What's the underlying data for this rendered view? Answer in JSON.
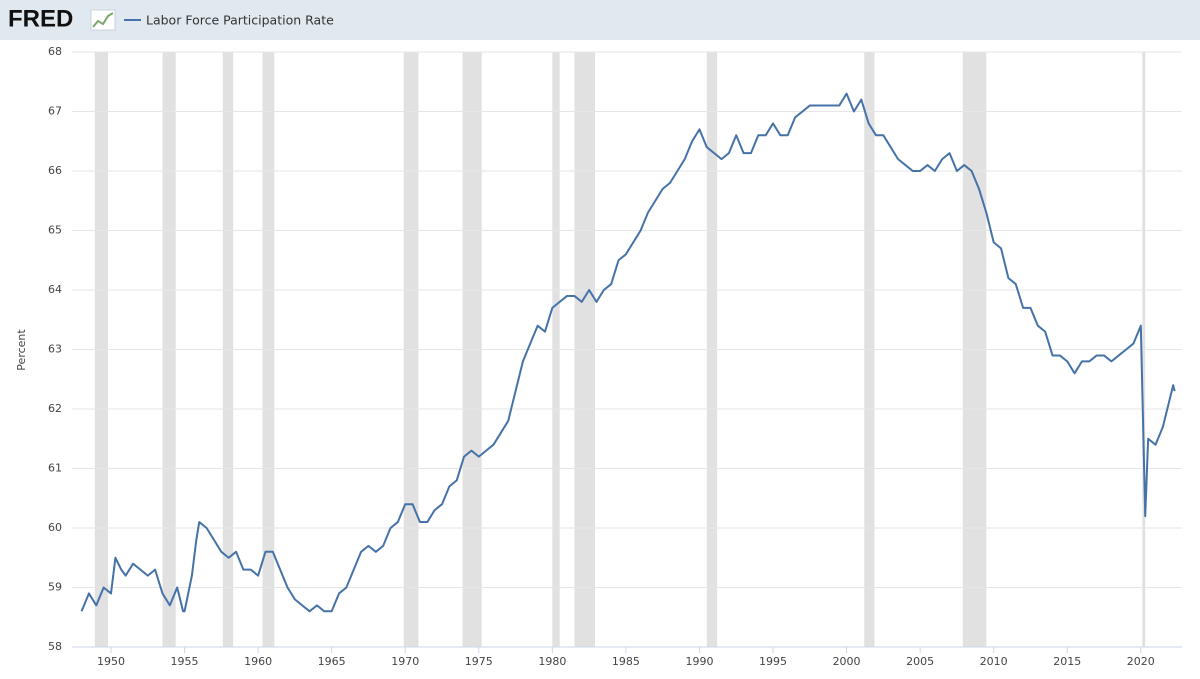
{
  "chart_data": {
    "type": "line",
    "logo": "FRED",
    "ylabel": "Percent",
    "series": [
      {
        "name": "Labor Force Participation Rate",
        "color": "#4572a7",
        "x": [
          1948.0,
          1948.5,
          1949.0,
          1949.5,
          1950.0,
          1950.3,
          1950.7,
          1951.0,
          1951.5,
          1952.0,
          1952.5,
          1953.0,
          1953.5,
          1954.0,
          1954.5,
          1954.9,
          1955.0,
          1955.5,
          1955.8,
          1956.0,
          1956.5,
          1957.0,
          1957.5,
          1958.0,
          1958.5,
          1959.0,
          1959.5,
          1960.0,
          1960.5,
          1961.0,
          1961.5,
          1962.0,
          1962.5,
          1963.0,
          1963.5,
          1964.0,
          1964.5,
          1965.0,
          1965.5,
          1966.0,
          1966.5,
          1967.0,
          1967.5,
          1968.0,
          1968.5,
          1969.0,
          1969.5,
          1970.0,
          1970.5,
          1971.0,
          1971.5,
          1972.0,
          1972.5,
          1973.0,
          1973.5,
          1974.0,
          1974.5,
          1975.0,
          1975.5,
          1976.0,
          1976.5,
          1977.0,
          1977.5,
          1978.0,
          1978.5,
          1979.0,
          1979.5,
          1980.0,
          1980.5,
          1981.0,
          1981.5,
          1982.0,
          1982.5,
          1983.0,
          1983.5,
          1984.0,
          1984.5,
          1985.0,
          1985.5,
          1986.0,
          1986.5,
          1987.0,
          1987.5,
          1988.0,
          1988.5,
          1989.0,
          1989.5,
          1990.0,
          1990.5,
          1991.0,
          1991.5,
          1992.0,
          1992.5,
          1993.0,
          1993.5,
          1994.0,
          1994.5,
          1995.0,
          1995.5,
          1996.0,
          1996.5,
          1997.0,
          1997.5,
          1998.0,
          1998.5,
          1999.0,
          1999.5,
          2000.0,
          2000.5,
          2001.0,
          2001.5,
          2002.0,
          2002.5,
          2003.0,
          2003.5,
          2004.0,
          2004.5,
          2005.0,
          2005.5,
          2006.0,
          2006.5,
          2007.0,
          2007.5,
          2008.0,
          2008.5,
          2009.0,
          2009.5,
          2010.0,
          2010.5,
          2011.0,
          2011.5,
          2012.0,
          2012.5,
          2013.0,
          2013.5,
          2014.0,
          2014.5,
          2015.0,
          2015.5,
          2016.0,
          2016.5,
          2017.0,
          2017.5,
          2018.0,
          2018.5,
          2019.0,
          2019.5,
          2020.0,
          2020.3,
          2020.5,
          2021.0,
          2021.5,
          2022.0,
          2022.2,
          2022.3
        ],
        "values": [
          58.6,
          58.9,
          58.7,
          59.0,
          58.9,
          59.5,
          59.3,
          59.2,
          59.4,
          59.3,
          59.2,
          59.3,
          58.9,
          58.7,
          59.0,
          58.6,
          58.6,
          59.2,
          59.8,
          60.1,
          60.0,
          59.8,
          59.6,
          59.5,
          59.6,
          59.3,
          59.3,
          59.2,
          59.6,
          59.6,
          59.3,
          59.0,
          58.8,
          58.7,
          58.6,
          58.7,
          58.6,
          58.6,
          58.9,
          59.0,
          59.3,
          59.6,
          59.7,
          59.6,
          59.7,
          60.0,
          60.1,
          60.4,
          60.4,
          60.1,
          60.1,
          60.3,
          60.4,
          60.7,
          60.8,
          61.2,
          61.3,
          61.2,
          61.3,
          61.4,
          61.6,
          61.8,
          62.3,
          62.8,
          63.1,
          63.4,
          63.3,
          63.7,
          63.8,
          63.9,
          63.9,
          63.8,
          64.0,
          63.8,
          64.0,
          64.1,
          64.5,
          64.6,
          64.8,
          65.0,
          65.3,
          65.5,
          65.7,
          65.8,
          66.0,
          66.2,
          66.5,
          66.7,
          66.4,
          66.3,
          66.2,
          66.3,
          66.6,
          66.3,
          66.3,
          66.6,
          66.6,
          66.8,
          66.6,
          66.6,
          66.9,
          67.0,
          67.1,
          67.1,
          67.1,
          67.1,
          67.1,
          67.3,
          67.0,
          67.2,
          66.8,
          66.6,
          66.6,
          66.4,
          66.2,
          66.1,
          66.0,
          66.0,
          66.1,
          66.0,
          66.2,
          66.3,
          66.0,
          66.1,
          66.0,
          65.7,
          65.3,
          64.8,
          64.7,
          64.2,
          64.1,
          63.7,
          63.7,
          63.4,
          63.3,
          62.9,
          62.9,
          62.8,
          62.6,
          62.8,
          62.8,
          62.9,
          62.9,
          62.8,
          62.9,
          63.0,
          63.1,
          63.4,
          60.2,
          61.5,
          61.4,
          61.7,
          62.2,
          62.4,
          62.3
        ]
      }
    ],
    "recessions": [
      [
        1948.9,
        1949.8
      ],
      [
        1953.5,
        1954.4
      ],
      [
        1957.6,
        1958.3
      ],
      [
        1960.3,
        1961.1
      ],
      [
        1969.9,
        1970.9
      ],
      [
        1973.9,
        1975.2
      ],
      [
        1980.0,
        1980.5
      ],
      [
        1981.5,
        1982.9
      ],
      [
        1990.5,
        1991.2
      ],
      [
        2001.2,
        2001.9
      ],
      [
        2007.9,
        2009.5
      ],
      [
        2020.1,
        2020.3
      ]
    ],
    "recession_color": "#e1e1e1",
    "xlim": [
      1947.35,
      2022.8
    ],
    "xticks": [
      1950,
      1955,
      1960,
      1965,
      1970,
      1975,
      1980,
      1985,
      1990,
      1995,
      2000,
      2005,
      2010,
      2015,
      2020
    ],
    "ylim": [
      58,
      68
    ],
    "yticks": [
      58,
      59,
      60,
      61,
      62,
      63,
      64,
      65,
      66,
      67,
      68
    ],
    "grid": true
  }
}
